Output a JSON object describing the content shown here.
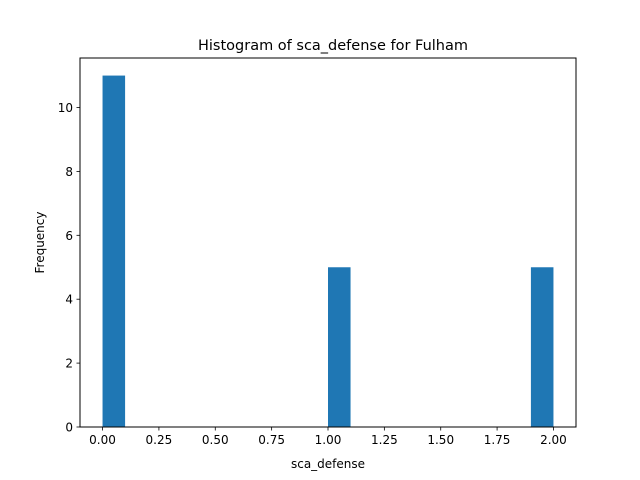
{
  "chart_data": {
    "type": "bar",
    "title": "Histogram of sca_defense for Fulham",
    "xlabel": "sca_defense",
    "ylabel": "Frequency",
    "xlim": [
      -0.1,
      2.1
    ],
    "ylim": [
      0,
      11.55
    ],
    "x_ticks": [
      "0.00",
      "0.25",
      "0.50",
      "0.75",
      "1.00",
      "1.25",
      "1.50",
      "1.75",
      "2.00"
    ],
    "y_ticks": [
      "0",
      "2",
      "4",
      "6",
      "8",
      "10"
    ],
    "bin_width": 0.1,
    "bins": [
      {
        "x_start": 0.0,
        "x_end": 0.1,
        "count": 11
      },
      {
        "x_start": 0.1,
        "x_end": 0.2,
        "count": 0
      },
      {
        "x_start": 0.2,
        "x_end": 0.3,
        "count": 0
      },
      {
        "x_start": 0.3,
        "x_end": 0.4,
        "count": 0
      },
      {
        "x_start": 0.4,
        "x_end": 0.5,
        "count": 0
      },
      {
        "x_start": 0.5,
        "x_end": 0.6,
        "count": 0
      },
      {
        "x_start": 0.6,
        "x_end": 0.7,
        "count": 0
      },
      {
        "x_start": 0.7,
        "x_end": 0.8,
        "count": 0
      },
      {
        "x_start": 0.8,
        "x_end": 0.9,
        "count": 0
      },
      {
        "x_start": 0.9,
        "x_end": 1.0,
        "count": 0
      },
      {
        "x_start": 1.0,
        "x_end": 1.1,
        "count": 5
      },
      {
        "x_start": 1.1,
        "x_end": 1.2,
        "count": 0
      },
      {
        "x_start": 1.2,
        "x_end": 1.3,
        "count": 0
      },
      {
        "x_start": 1.3,
        "x_end": 1.4,
        "count": 0
      },
      {
        "x_start": 1.4,
        "x_end": 1.5,
        "count": 0
      },
      {
        "x_start": 1.5,
        "x_end": 1.6,
        "count": 0
      },
      {
        "x_start": 1.6,
        "x_end": 1.7,
        "count": 0
      },
      {
        "x_start": 1.7,
        "x_end": 1.8,
        "count": 0
      },
      {
        "x_start": 1.8,
        "x_end": 1.9,
        "count": 0
      },
      {
        "x_start": 1.9,
        "x_end": 2.0,
        "count": 5
      }
    ],
    "bar_color": "#1f77b4",
    "grid": false,
    "legend": "none"
  }
}
